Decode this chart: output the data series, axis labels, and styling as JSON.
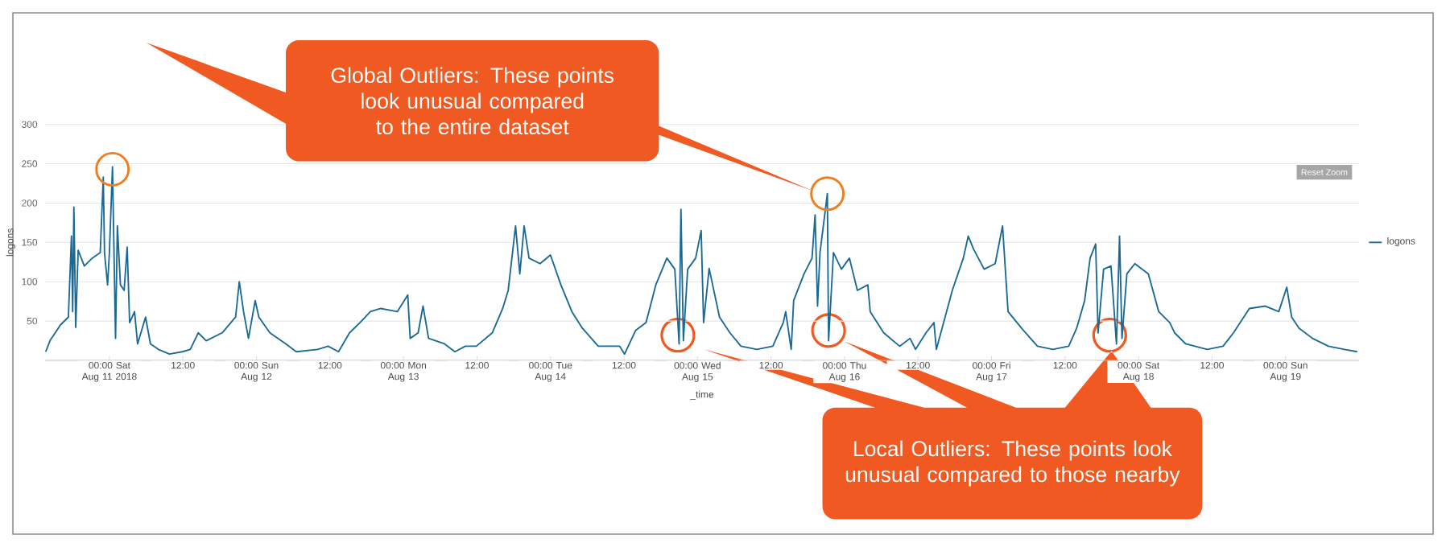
{
  "chart_data": {
    "type": "line",
    "xlabel": "_time",
    "ylabel": "logons",
    "annotations": [
      "Global Outliers: These points look unusual compared to the entire dataset",
      "Local Outliers: These points look unusual compared to those nearby",
      "Reset Zoom"
    ],
    "xlim": [
      "2018-08-10T13:30",
      "2018-08-19T12:00"
    ],
    "ylim": [
      0,
      300
    ],
    "yticks": [
      50,
      100,
      150,
      200,
      250,
      300
    ],
    "xticks": [
      {
        "value": "2018-08-11T00:00",
        "label": "00:00 Sat Aug 11 2018"
      },
      {
        "value": "2018-08-11T12:00",
        "label": "12:00"
      },
      {
        "value": "2018-08-12T00:00",
        "label": "00:00 Sun Aug 12"
      },
      {
        "value": "2018-08-12T12:00",
        "label": "12:00"
      },
      {
        "value": "2018-08-13T00:00",
        "label": "00:00 Mon Aug 13"
      },
      {
        "value": "2018-08-13T12:00",
        "label": "12:00"
      },
      {
        "value": "2018-08-14T00:00",
        "label": "00:00 Tue Aug 14"
      },
      {
        "value": "2018-08-14T12:00",
        "label": "12:00"
      },
      {
        "value": "2018-08-15T00:00",
        "label": "00:00 Wed Aug 15"
      },
      {
        "value": "2018-08-15T12:00",
        "label": "12:00"
      },
      {
        "value": "2018-08-16T00:00",
        "label": "00:00 Thu Aug 16"
      },
      {
        "value": "2018-08-16T12:00",
        "label": "12:00"
      },
      {
        "value": "2018-08-17T00:00",
        "label": "00:00 Fri Aug 17"
      },
      {
        "value": "2018-08-17T12:00",
        "label": "12:00"
      },
      {
        "value": "2018-08-18T00:00",
        "label": "00:00 Sat Aug 18"
      },
      {
        "value": "2018-08-18T12:00",
        "label": "12:00"
      },
      {
        "value": "2018-08-19T00:00",
        "label": "00:00 Sun Aug 19"
      }
    ],
    "grid": "y",
    "legend": "right",
    "series": [
      {
        "name": "logons",
        "color": "#1b6a96",
        "x": [
          "2018-08-10T13:36",
          "2018-08-10T14:18",
          "2018-08-10T16:00",
          "2018-08-10T17:18",
          "2018-08-10T17:48",
          "2018-08-10T18:00",
          "2018-08-10T18:12",
          "2018-08-10T18:30",
          "2018-08-10T18:54",
          "2018-08-10T19:54",
          "2018-08-10T21:12",
          "2018-08-10T22:30",
          "2018-08-10T23:00",
          "2018-08-10T23:12",
          "2018-08-10T23:42",
          "2018-08-11T00:00",
          "2018-08-11T00:30",
          "2018-08-11T01:00",
          "2018-08-11T01:18",
          "2018-08-11T01:48",
          "2018-08-11T02:24",
          "2018-08-11T02:54",
          "2018-08-11T03:18",
          "2018-08-11T04:06",
          "2018-08-11T04:36",
          "2018-08-11T05:54",
          "2018-08-11T06:42",
          "2018-08-11T08:00",
          "2018-08-11T09:48",
          "2018-08-11T11:54",
          "2018-08-11T13:12",
          "2018-08-11T14:30",
          "2018-08-11T15:48",
          "2018-08-11T18:24",
          "2018-08-11T20:36",
          "2018-08-11T21:12",
          "2018-08-11T21:54",
          "2018-08-11T22:42",
          "2018-08-11T23:48",
          "2018-08-12T00:24",
          "2018-08-12T02:12",
          "2018-08-12T04:48",
          "2018-08-12T06:30",
          "2018-08-12T10:00",
          "2018-08-12T11:42",
          "2018-08-12T13:24",
          "2018-08-12T15:12",
          "2018-08-12T16:54",
          "2018-08-12T18:36",
          "2018-08-12T20:18",
          "2018-08-12T23:00",
          "2018-08-13T00:42",
          "2018-08-13T01:06",
          "2018-08-13T02:24",
          "2018-08-13T03:12",
          "2018-08-13T04:06",
          "2018-08-13T06:42",
          "2018-08-13T08:24",
          "2018-08-13T10:06",
          "2018-08-13T11:54",
          "2018-08-13T14:30",
          "2018-08-13T16:12",
          "2018-08-13T17:06",
          "2018-08-13T18:18",
          "2018-08-13T19:00",
          "2018-08-13T19:42",
          "2018-08-13T20:30",
          "2018-08-13T22:18",
          "2018-08-14T00:00",
          "2018-08-14T01:42",
          "2018-08-14T03:30",
          "2018-08-14T05:12",
          "2018-08-14T07:48",
          "2018-08-14T11:18",
          "2018-08-14T12:06",
          "2018-08-14T13:54",
          "2018-08-14T15:36",
          "2018-08-14T17:12",
          "2018-08-14T19:00",
          "2018-08-14T20:18",
          "2018-08-14T21:00",
          "2018-08-14T21:18",
          "2018-08-14T21:42",
          "2018-08-14T22:24",
          "2018-08-14T23:42",
          "2018-08-15T00:36",
          "2018-08-15T01:00",
          "2018-08-15T01:54",
          "2018-08-15T03:36",
          "2018-08-15T05:18",
          "2018-08-15T07:06",
          "2018-08-15T09:42",
          "2018-08-15T12:18",
          "2018-08-15T14:00",
          "2018-08-15T14:24",
          "2018-08-15T15:18",
          "2018-08-15T15:42",
          "2018-08-15T17:24",
          "2018-08-15T18:42",
          "2018-08-15T19:12",
          "2018-08-15T19:36",
          "2018-08-15T20:00",
          "2018-08-15T21:12",
          "2018-08-15T21:24",
          "2018-08-15T22:12",
          "2018-08-15T23:30",
          "2018-08-16T00:48",
          "2018-08-16T02:06",
          "2018-08-16T03:48",
          "2018-08-16T04:12",
          "2018-08-16T06:24",
          "2018-08-16T09:00",
          "2018-08-16T10:42",
          "2018-08-16T11:36",
          "2018-08-16T13:18",
          "2018-08-16T14:36",
          "2018-08-16T15:00",
          "2018-08-16T17:36",
          "2018-08-16T19:24",
          "2018-08-16T20:12",
          "2018-08-16T21:06",
          "2018-08-16T22:48",
          "2018-08-17T00:36",
          "2018-08-17T01:48",
          "2018-08-17T02:42",
          "2018-08-17T04:54",
          "2018-08-17T07:30",
          "2018-08-17T10:00",
          "2018-08-17T12:36",
          "2018-08-17T13:54",
          "2018-08-17T15:12",
          "2018-08-17T16:06",
          "2018-08-17T17:00",
          "2018-08-17T17:24",
          "2018-08-17T18:18",
          "2018-08-17T19:30",
          "2018-08-17T20:24",
          "2018-08-17T20:54",
          "2018-08-17T21:18",
          "2018-08-17T22:06",
          "2018-08-17T23:24",
          "2018-08-18T01:36",
          "2018-08-18T03:18",
          "2018-08-18T05:06",
          "2018-08-18T05:54",
          "2018-08-18T07:42",
          "2018-08-18T11:12",
          "2018-08-18T13:48",
          "2018-08-18T15:30",
          "2018-08-18T18:06",
          "2018-08-18T20:42",
          "2018-08-18T22:54",
          "2018-08-19T00:12",
          "2018-08-19T01:00",
          "2018-08-19T02:12",
          "2018-08-19T04:24",
          "2018-08-19T07:00",
          "2018-08-19T09:36",
          "2018-08-19T11:42"
        ],
        "values": [
          11,
          25,
          45,
          55,
          158,
          62,
          195,
          42,
          140,
          120,
          130,
          137,
          233,
          137,
          96,
          137,
          246,
          28,
          171,
          96,
          89,
          144,
          48,
          62,
          21,
          55,
          21,
          14,
          8,
          11,
          14,
          35,
          25,
          35,
          55,
          100,
          62,
          28,
          76,
          55,
          35,
          21,
          11,
          14,
          18,
          11,
          35,
          48,
          62,
          66,
          62,
          83,
          28,
          35,
          69,
          28,
          21,
          11,
          18,
          18,
          35,
          66,
          89,
          171,
          110,
          171,
          130,
          123,
          134,
          96,
          62,
          41,
          18,
          18,
          8,
          38,
          48,
          96,
          130,
          116,
          21,
          192,
          25,
          116,
          130,
          165,
          48,
          117,
          55,
          35,
          18,
          14,
          18,
          48,
          62,
          14,
          76,
          110,
          130,
          185,
          69,
          137,
          212,
          25,
          137,
          116,
          130,
          89,
          96,
          62,
          35,
          18,
          28,
          14,
          35,
          48,
          14,
          89,
          130,
          158,
          141,
          116,
          123,
          171,
          62,
          41,
          18,
          14,
          18,
          41,
          76,
          130,
          148,
          35,
          116,
          120,
          21,
          158,
          28,
          110,
          123,
          110,
          62,
          48,
          35,
          21,
          14,
          18,
          35,
          66,
          69,
          62,
          93,
          55,
          41,
          28,
          18,
          14,
          11
        ]
      }
    ]
  }
}
